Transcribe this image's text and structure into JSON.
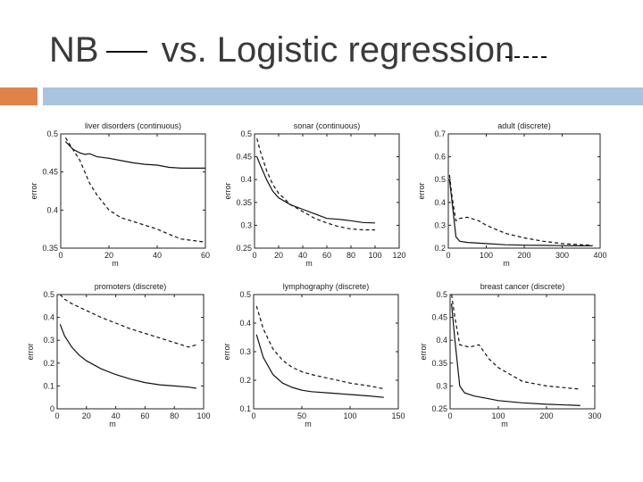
{
  "slide": {
    "title_nb": "NB",
    "title_rest": "vs. Logistic regression"
  },
  "legend": {
    "solid_label": "NB",
    "dashed_label": "Logistic regression"
  },
  "chart_data": [
    {
      "type": "line",
      "title": "liver disorders (continuous)",
      "xlabel": "m",
      "ylabel": "error",
      "xlim": [
        0,
        60
      ],
      "ylim": [
        0.35,
        0.5
      ],
      "xticks": [
        0,
        20,
        40,
        60
      ],
      "yticks": [
        0.35,
        0.4,
        0.45,
        0.5
      ],
      "series": [
        {
          "style": "solid",
          "x": [
            2,
            5,
            8,
            10,
            12,
            15,
            20,
            25,
            30,
            35,
            40,
            45,
            50,
            55,
            60
          ],
          "y": [
            0.49,
            0.48,
            0.475,
            0.473,
            0.474,
            0.47,
            0.468,
            0.465,
            0.462,
            0.46,
            0.459,
            0.456,
            0.455,
            0.455,
            0.455
          ]
        },
        {
          "style": "dashed",
          "x": [
            2,
            5,
            8,
            10,
            12,
            15,
            20,
            25,
            30,
            35,
            40,
            45,
            50,
            55,
            60
          ],
          "y": [
            0.495,
            0.48,
            0.465,
            0.45,
            0.435,
            0.42,
            0.4,
            0.39,
            0.385,
            0.38,
            0.375,
            0.368,
            0.362,
            0.36,
            0.358
          ]
        }
      ]
    },
    {
      "type": "line",
      "title": "sonar (continuous)",
      "xlabel": "m",
      "ylabel": "error",
      "xlim": [
        0,
        120
      ],
      "ylim": [
        0.25,
        0.5
      ],
      "xticks": [
        0,
        20,
        40,
        60,
        80,
        100,
        120
      ],
      "yticks": [
        0.25,
        0.3,
        0.35,
        0.4,
        0.45,
        0.5
      ],
      "series": [
        {
          "style": "solid",
          "x": [
            2,
            5,
            10,
            15,
            20,
            30,
            40,
            50,
            60,
            70,
            80,
            90,
            100
          ],
          "y": [
            0.45,
            0.43,
            0.4,
            0.375,
            0.36,
            0.345,
            0.335,
            0.325,
            0.315,
            0.313,
            0.31,
            0.306,
            0.305
          ]
        },
        {
          "style": "dashed",
          "x": [
            2,
            5,
            10,
            15,
            20,
            30,
            40,
            50,
            60,
            70,
            80,
            90,
            100
          ],
          "y": [
            0.49,
            0.46,
            0.42,
            0.39,
            0.37,
            0.345,
            0.33,
            0.315,
            0.305,
            0.297,
            0.292,
            0.29,
            0.29
          ]
        }
      ]
    },
    {
      "type": "line",
      "title": "adult (discrete)",
      "xlabel": "m",
      "ylabel": "error",
      "xlim": [
        0,
        400
      ],
      "ylim": [
        0.2,
        0.7
      ],
      "xticks": [
        0,
        100,
        200,
        300,
        400
      ],
      "yticks": [
        0.2,
        0.3,
        0.4,
        0.5,
        0.6,
        0.7
      ],
      "series": [
        {
          "style": "solid",
          "x": [
            3,
            10,
            20,
            30,
            50,
            100,
            150,
            200,
            250,
            300,
            350,
            380
          ],
          "y": [
            0.5,
            0.4,
            0.25,
            0.23,
            0.225,
            0.22,
            0.215,
            0.213,
            0.212,
            0.211,
            0.21,
            0.21
          ]
        },
        {
          "style": "dashed",
          "x": [
            3,
            10,
            20,
            30,
            50,
            80,
            100,
            150,
            200,
            250,
            300,
            350,
            380
          ],
          "y": [
            0.52,
            0.42,
            0.32,
            0.33,
            0.335,
            0.32,
            0.3,
            0.265,
            0.245,
            0.23,
            0.22,
            0.215,
            0.213
          ]
        }
      ]
    },
    {
      "type": "line",
      "title": "promoters (discrete)",
      "xlabel": "m",
      "ylabel": "error",
      "xlim": [
        0,
        100
      ],
      "ylim": [
        0,
        0.5
      ],
      "xticks": [
        0,
        20,
        40,
        60,
        80,
        100
      ],
      "yticks": [
        0,
        0.1,
        0.2,
        0.3,
        0.4,
        0.5
      ],
      "series": [
        {
          "style": "solid",
          "x": [
            2,
            5,
            10,
            15,
            20,
            30,
            40,
            50,
            60,
            70,
            80,
            90,
            95
          ],
          "y": [
            0.37,
            0.32,
            0.27,
            0.235,
            0.21,
            0.175,
            0.15,
            0.13,
            0.115,
            0.105,
            0.1,
            0.095,
            0.09
          ]
        },
        {
          "style": "dashed",
          "x": [
            2,
            5,
            10,
            20,
            30,
            40,
            50,
            60,
            70,
            80,
            90,
            95
          ],
          "y": [
            0.5,
            0.48,
            0.46,
            0.43,
            0.4,
            0.375,
            0.35,
            0.33,
            0.31,
            0.29,
            0.27,
            0.28
          ]
        }
      ]
    },
    {
      "type": "line",
      "title": "lymphography (discrete)",
      "xlabel": "m",
      "ylabel": "error",
      "xlim": [
        0,
        150
      ],
      "ylim": [
        0.1,
        0.5
      ],
      "xticks": [
        0,
        50,
        100,
        150
      ],
      "yticks": [
        0.1,
        0.2,
        0.3,
        0.4,
        0.5
      ],
      "series": [
        {
          "style": "solid",
          "x": [
            3,
            10,
            20,
            30,
            40,
            50,
            60,
            80,
            100,
            120,
            135
          ],
          "y": [
            0.36,
            0.28,
            0.22,
            0.19,
            0.175,
            0.165,
            0.16,
            0.155,
            0.15,
            0.145,
            0.14
          ]
        },
        {
          "style": "dashed",
          "x": [
            3,
            10,
            20,
            30,
            40,
            50,
            60,
            80,
            100,
            120,
            135
          ],
          "y": [
            0.46,
            0.38,
            0.31,
            0.27,
            0.245,
            0.23,
            0.22,
            0.205,
            0.19,
            0.18,
            0.17
          ]
        }
      ]
    },
    {
      "type": "line",
      "title": "breast cancer (discrete)",
      "xlabel": "m",
      "ylabel": "error",
      "xlim": [
        0,
        300
      ],
      "ylim": [
        0.25,
        0.5
      ],
      "xticks": [
        0,
        100,
        200,
        300
      ],
      "yticks": [
        0.25,
        0.3,
        0.35,
        0.4,
        0.45,
        0.5
      ],
      "series": [
        {
          "style": "solid",
          "x": [
            3,
            10,
            20,
            30,
            50,
            80,
            100,
            150,
            200,
            250,
            270
          ],
          "y": [
            0.48,
            0.4,
            0.3,
            0.285,
            0.278,
            0.272,
            0.268,
            0.263,
            0.26,
            0.258,
            0.257
          ]
        },
        {
          "style": "dashed",
          "x": [
            3,
            10,
            20,
            40,
            60,
            80,
            100,
            150,
            200,
            250,
            270
          ],
          "y": [
            0.5,
            0.45,
            0.39,
            0.385,
            0.39,
            0.36,
            0.34,
            0.31,
            0.3,
            0.295,
            0.293
          ]
        }
      ]
    }
  ]
}
